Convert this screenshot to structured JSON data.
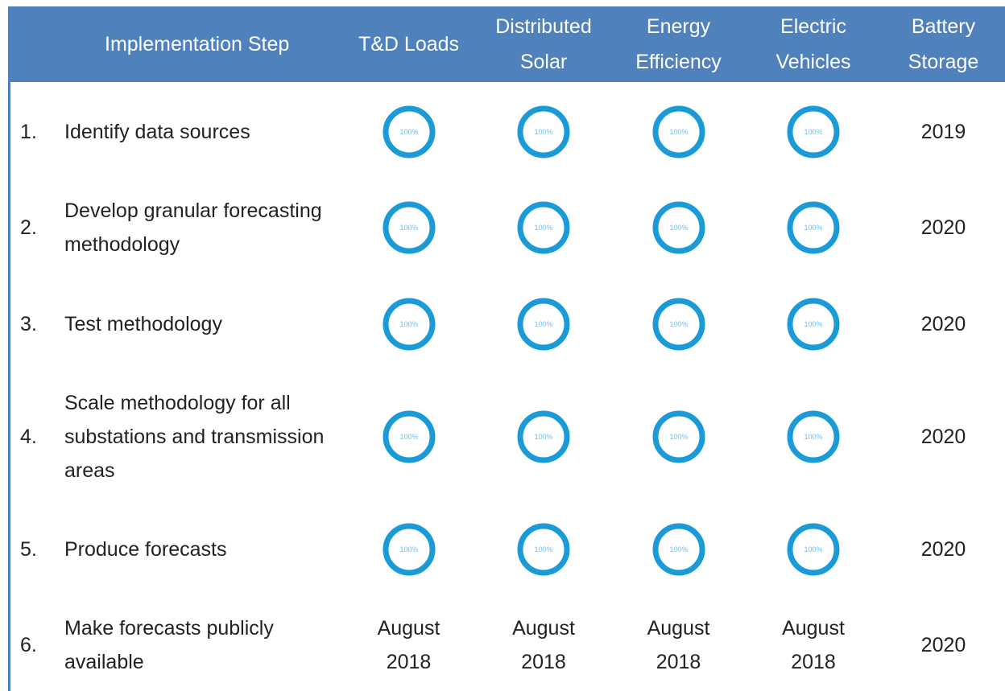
{
  "table": {
    "header": [
      "Implementation Step",
      "T&D Loads",
      "Distributed Solar",
      "Energy Efficiency",
      "Electric Vehicles",
      "Battery Storage"
    ],
    "rows": [
      {
        "number": "1.",
        "step": "Identify data sources",
        "cells": [
          {
            "progress": "100%"
          },
          {
            "progress": "100%"
          },
          {
            "progress": "100%"
          },
          {
            "progress": "100%"
          },
          "2019"
        ]
      },
      {
        "number": "2.",
        "step": "Develop granular forecasting methodology",
        "cells": [
          {
            "progress": "100%"
          },
          {
            "progress": "100%"
          },
          {
            "progress": "100%"
          },
          {
            "progress": "100%"
          },
          "2020"
        ]
      },
      {
        "number": "3.",
        "step": "Test methodology",
        "cells": [
          {
            "progress": "100%"
          },
          {
            "progress": "100%"
          },
          {
            "progress": "100%"
          },
          {
            "progress": "100%"
          },
          "2020"
        ]
      },
      {
        "number": "4.",
        "step": "Scale methodology for all substations and transmission areas",
        "cells": [
          {
            "progress": "100%"
          },
          {
            "progress": "100%"
          },
          {
            "progress": "100%"
          },
          {
            "progress": "100%"
          },
          "2020"
        ]
      },
      {
        "number": "5.",
        "step": "Produce forecasts",
        "cells": [
          {
            "progress": "100%"
          },
          {
            "progress": "100%"
          },
          {
            "progress": "100%"
          },
          {
            "progress": "100%"
          },
          "2020"
        ]
      },
      {
        "number": "6.",
        "step": "Make forecasts publicly available",
        "cells": [
          "August 2018",
          "August 2018",
          "August 2018",
          "August 2018",
          "2020"
        ]
      }
    ]
  }
}
